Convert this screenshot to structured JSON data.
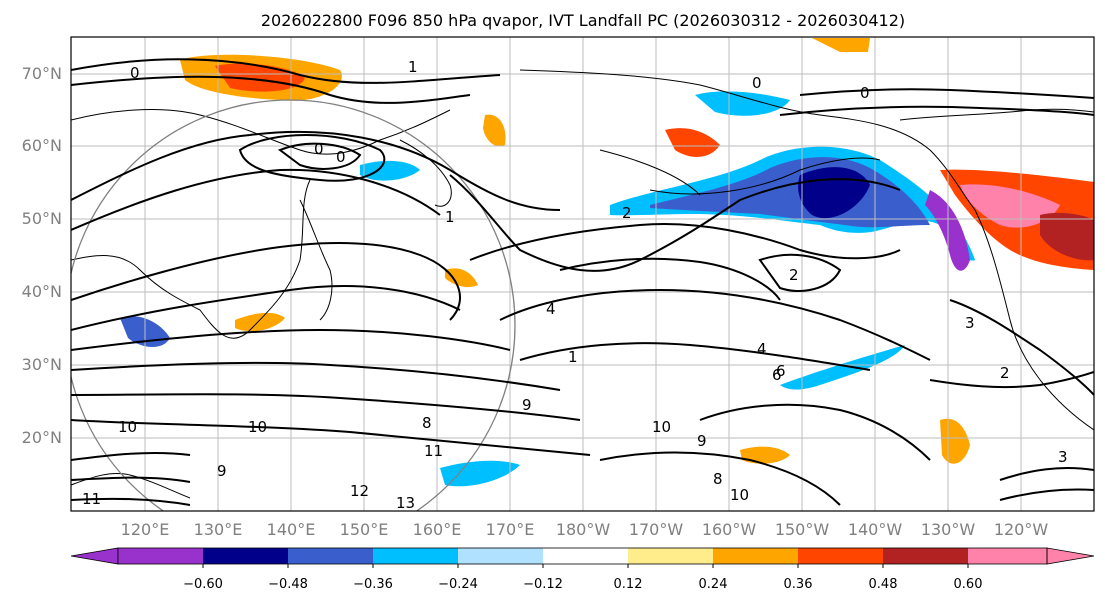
{
  "title": "2026022800 F096 850 hPa qvapor, IVT Landfall PC (2026030312 - 2026030412)",
  "map": {
    "lat_ticks": [
      "70°N",
      "60°N",
      "50°N",
      "40°N",
      "30°N",
      "20°N"
    ],
    "lon_ticks": [
      "120°E",
      "130°E",
      "140°E",
      "150°E",
      "160°E",
      "170°E",
      "180°W",
      "170°W",
      "160°W",
      "150°W",
      "140°W",
      "130°W",
      "120°W"
    ],
    "grid": true,
    "contour_labels": [
      "0",
      "1",
      "0",
      "0",
      "0",
      "0",
      "1",
      "2",
      "4",
      "2",
      "1",
      "4",
      "6",
      "3",
      "2",
      "3",
      "9",
      "8",
      "10",
      "11",
      "12",
      "13",
      "10",
      "8",
      "10",
      "9",
      "11",
      "9",
      "10",
      "6"
    ]
  },
  "colorbar": {
    "ticks": [
      "−0.60",
      "−0.48",
      "−0.36",
      "−0.24",
      "−0.12",
      "0.12",
      "0.24",
      "0.36",
      "0.48",
      "0.60"
    ],
    "colors": [
      "#9932cc",
      "#00008b",
      "#3a5fcd",
      "#00bfff",
      "#b0e2ff",
      "#ffffff",
      "#ffec8b",
      "#ffa500",
      "#ff4500",
      "#b22222",
      "#ff82ab"
    ]
  }
}
